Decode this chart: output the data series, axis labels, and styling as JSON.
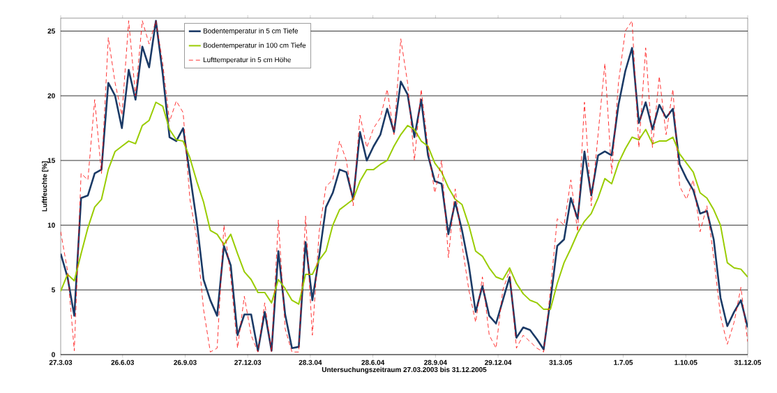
{
  "chart_data": {
    "type": "line",
    "xlabel": "Untersuchungszeitraum 27.03.2003 bis 31.12.2005",
    "ylabel": "Luftfeuchte [%]",
    "x": [
      "2003-03-27",
      "2003-04-06",
      "2003-04-16",
      "2003-04-26",
      "2003-05-06",
      "2003-05-16",
      "2003-05-26",
      "2003-06-05",
      "2003-06-15",
      "2003-06-25",
      "2003-07-05",
      "2003-07-15",
      "2003-07-25",
      "2003-08-04",
      "2003-08-14",
      "2003-08-24",
      "2003-09-03",
      "2003-09-13",
      "2003-09-23",
      "2003-10-03",
      "2003-10-13",
      "2003-10-23",
      "2003-11-02",
      "2003-11-12",
      "2003-11-22",
      "2003-12-02",
      "2003-12-12",
      "2003-12-22",
      "2004-01-01",
      "2004-01-11",
      "2004-01-21",
      "2004-01-31",
      "2004-02-10",
      "2004-02-20",
      "2004-03-01",
      "2004-03-11",
      "2004-03-21",
      "2004-03-31",
      "2004-04-10",
      "2004-04-20",
      "2004-04-30",
      "2004-05-10",
      "2004-05-20",
      "2004-05-30",
      "2004-06-09",
      "2004-06-19",
      "2004-06-29",
      "2004-07-09",
      "2004-07-19",
      "2004-07-29",
      "2004-08-08",
      "2004-08-18",
      "2004-08-28",
      "2004-09-07",
      "2004-09-17",
      "2004-09-27",
      "2004-10-07",
      "2004-10-17",
      "2004-10-27",
      "2004-11-06",
      "2004-11-16",
      "2004-11-26",
      "2004-12-06",
      "2004-12-16",
      "2004-12-26",
      "2005-01-05",
      "2005-01-15",
      "2005-01-25",
      "2005-02-04",
      "2005-02-14",
      "2005-02-24",
      "2005-03-06",
      "2005-03-16",
      "2005-03-26",
      "2005-04-05",
      "2005-04-15",
      "2005-04-25",
      "2005-05-05",
      "2005-05-15",
      "2005-05-25",
      "2005-06-04",
      "2005-06-14",
      "2005-06-24",
      "2005-07-04",
      "2005-07-14",
      "2005-07-24",
      "2005-08-03",
      "2005-08-13",
      "2005-08-23",
      "2005-09-02",
      "2005-09-12",
      "2005-09-22",
      "2005-10-02",
      "2005-10-12",
      "2005-10-22",
      "2005-11-01",
      "2005-11-11",
      "2005-11-21",
      "2005-12-01",
      "2005-12-11",
      "2005-12-21",
      "2005-12-31"
    ],
    "series": [
      {
        "name": "Bodentemperatur in 5 cm Tiefe",
        "color": "#1b3a66",
        "line_style": "solid",
        "values": [
          7.8,
          6.0,
          3.0,
          12.1,
          12.3,
          14.0,
          14.3,
          21.0,
          20.0,
          17.5,
          22.0,
          19.7,
          23.8,
          22.2,
          25.8,
          21.7,
          16.8,
          16.5,
          17.5,
          13.9,
          10.3,
          5.8,
          4.2,
          3.0,
          8.4,
          6.9,
          1.5,
          3.1,
          3.1,
          0.3,
          3.3,
          0.3,
          8.0,
          3.1,
          0.5,
          0.6,
          8.7,
          4.2,
          7.6,
          11.4,
          12.5,
          14.3,
          14.1,
          12.0,
          17.2,
          15.0,
          16.1,
          17.0,
          19.0,
          17.2,
          21.1,
          20.1,
          16.8,
          19.7,
          15.4,
          13.4,
          13.2,
          9.3,
          11.8,
          9.6,
          6.9,
          3.3,
          5.3,
          3.0,
          2.4,
          4.2,
          6.0,
          1.3,
          2.1,
          1.9,
          1.2,
          0.4,
          4.2,
          8.4,
          8.9,
          12.1,
          10.5,
          15.7,
          12.3,
          15.4,
          15.7,
          15.4,
          19.3,
          21.9,
          23.7,
          17.9,
          19.5,
          17.4,
          19.3,
          18.3,
          19.0,
          14.7,
          13.6,
          12.7,
          10.9,
          11.1,
          8.9,
          4.4,
          2.2,
          3.3,
          4.2,
          2.1
        ]
      },
      {
        "name": "Bodentemperatur in 100 cm Tiefe",
        "color": "#99cc00",
        "line_style": "solid",
        "values": [
          4.9,
          6.2,
          5.7,
          7.8,
          9.8,
          11.4,
          12.0,
          14.3,
          15.7,
          16.1,
          16.5,
          16.3,
          17.7,
          18.1,
          19.5,
          19.2,
          17.4,
          16.6,
          16.5,
          15.2,
          13.4,
          11.8,
          9.6,
          9.3,
          8.5,
          9.3,
          7.8,
          6.4,
          5.8,
          4.8,
          4.8,
          4.0,
          5.8,
          5.1,
          4.2,
          3.9,
          6.2,
          6.2,
          7.3,
          8.0,
          10.0,
          11.2,
          11.6,
          12.0,
          13.4,
          14.3,
          14.3,
          14.7,
          15.0,
          16.1,
          17.0,
          17.7,
          17.4,
          16.5,
          16.1,
          14.8,
          14.1,
          12.9,
          12.0,
          11.6,
          10.0,
          8.0,
          7.6,
          6.7,
          6.0,
          5.8,
          6.7,
          5.5,
          4.7,
          4.2,
          4.0,
          3.5,
          3.5,
          5.5,
          7.1,
          8.2,
          9.4,
          10.3,
          10.9,
          12.1,
          13.6,
          13.2,
          14.8,
          15.9,
          16.8,
          16.6,
          17.4,
          16.3,
          16.5,
          16.5,
          16.8,
          15.5,
          14.8,
          14.1,
          12.5,
          12.1,
          11.2,
          10.0,
          7.1,
          6.7,
          6.6,
          6.0
        ]
      },
      {
        "name": "Lufttemperatur in 5 cm Höhe",
        "color": "#ff0000",
        "line_style": "dashed",
        "values": [
          9.5,
          6.5,
          0.3,
          14.0,
          13.5,
          19.7,
          14.0,
          24.5,
          21.0,
          18.5,
          25.8,
          20.0,
          25.8,
          24.0,
          25.8,
          22.5,
          18.0,
          19.6,
          18.7,
          12.0,
          9.0,
          3.5,
          0.2,
          0.5,
          10.0,
          6.0,
          0.5,
          4.5,
          1.5,
          0.2,
          4.0,
          0.2,
          10.4,
          2.0,
          0.2,
          0.2,
          10.7,
          1.5,
          9.5,
          13.0,
          13.5,
          16.5,
          15.0,
          11.5,
          18.5,
          16.0,
          17.5,
          18.3,
          20.5,
          17.0,
          24.4,
          21.0,
          15.0,
          20.5,
          16.0,
          12.5,
          15.0,
          7.5,
          12.8,
          8.5,
          5.0,
          2.5,
          6.0,
          1.5,
          0.5,
          5.0,
          6.5,
          0.5,
          1.5,
          1.0,
          0.5,
          0.2,
          5.0,
          10.5,
          10.0,
          13.5,
          9.5,
          19.5,
          11.5,
          17.0,
          22.5,
          14.0,
          21.0,
          25.0,
          25.8,
          16.0,
          23.7,
          16.0,
          21.5,
          17.0,
          20.5,
          13.0,
          12.0,
          13.5,
          9.5,
          11.5,
          7.5,
          3.0,
          0.8,
          2.5,
          5.2,
          1.0
        ]
      }
    ],
    "xlim": [
      "2003-03-27",
      "2005-12-31"
    ],
    "xticks": [
      {
        "value": "2003-03-27",
        "label": "27.3.03"
      },
      {
        "value": "2003-06-26",
        "label": "26.6.03"
      },
      {
        "value": "2003-09-26",
        "label": "26.9.03"
      },
      {
        "value": "2003-12-27",
        "label": "27.12.03"
      },
      {
        "value": "2004-03-28",
        "label": "28.3.04"
      },
      {
        "value": "2004-06-28",
        "label": "28.6.04"
      },
      {
        "value": "2004-09-28",
        "label": "28.9.04"
      },
      {
        "value": "2004-12-29",
        "label": "29.12.04"
      },
      {
        "value": "2005-03-31",
        "label": "31.3.05"
      },
      {
        "value": "2005-07-01",
        "label": "1.7.05"
      },
      {
        "value": "2005-10-01",
        "label": "1.10.05"
      },
      {
        "value": "2005-12-31",
        "label": "31.12.05"
      }
    ],
    "ylim": [
      0,
      26
    ],
    "yticks": [
      0,
      5,
      10,
      15,
      20,
      25
    ],
    "grid": "y",
    "legend": "top left",
    "marker": "none"
  }
}
